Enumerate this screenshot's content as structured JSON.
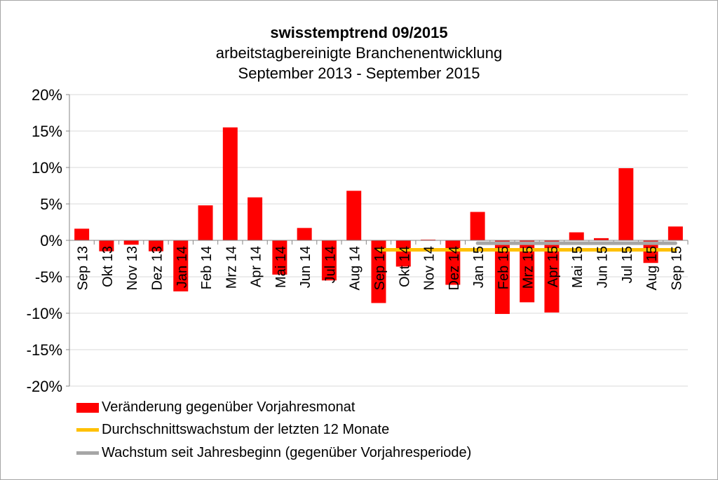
{
  "chart_data": {
    "type": "bar",
    "title": "swisstemptrend 09/2015",
    "subtitle": [
      "arbeitstagbereinigte Branchenentwicklung",
      "September 2013 - September 2015"
    ],
    "categories": [
      "Sep 13",
      "Okt 13",
      "Nov 13",
      "Dez 13",
      "Jan 14",
      "Feb 14",
      "Mrz 14",
      "Apr 14",
      "Mai 14",
      "Jun 14",
      "Jul 14",
      "Aug 14",
      "Sep 14",
      "Okt 14",
      "Nov 14",
      "Dez 14",
      "Jan 15",
      "Feb 15",
      "Mrz 15",
      "Apr 15",
      "Mai 15",
      "Jun 15",
      "Jul 15",
      "Aug 15",
      "Sep 15"
    ],
    "ylim": [
      -20,
      20
    ],
    "yticks": [
      "-20%",
      "-15%",
      "-10%",
      "-5%",
      "0%",
      "5%",
      "10%",
      "15%",
      "20%"
    ],
    "ytick_values": [
      -20,
      -15,
      -10,
      -5,
      0,
      5,
      10,
      15,
      20
    ],
    "grid": true,
    "legend_position": "bottom",
    "series": [
      {
        "name": "Veränderung gegenüber Vorjahresmonat",
        "type": "bar",
        "color": "#ff0000",
        "values": [
          1.6,
          -1.5,
          -0.6,
          -1.5,
          -7.0,
          4.8,
          15.5,
          5.9,
          -4.7,
          1.7,
          -5.5,
          6.8,
          -8.6,
          -3.6,
          0.1,
          -6.1,
          3.9,
          -10.1,
          -8.5,
          -9.9,
          1.1,
          0.3,
          9.9,
          -3.1,
          1.9
        ]
      },
      {
        "name": "Durchschnittswachstum der letzten 12 Monate",
        "type": "line",
        "color": "#ffc000",
        "x_range": [
          "Sep 14",
          "Sep 15"
        ],
        "value": -1.3
      },
      {
        "name": "Wachstum seit Jahresbeginn (gegenüber Vorjahresperiode)",
        "type": "line",
        "color": "#a6a6a6",
        "x_range": [
          "Jan 15",
          "Sep 15"
        ],
        "value": -0.4
      }
    ]
  }
}
